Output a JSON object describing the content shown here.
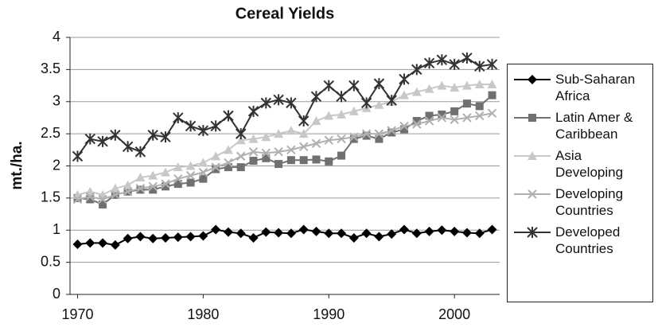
{
  "chart_data": {
    "type": "line",
    "title": "Cereal Yields",
    "y_label": "mt./ha.",
    "x": [
      1970,
      1971,
      1972,
      1973,
      1974,
      1975,
      1976,
      1977,
      1978,
      1979,
      1980,
      1981,
      1982,
      1983,
      1984,
      1985,
      1986,
      1987,
      1988,
      1989,
      1990,
      1991,
      1992,
      1993,
      1994,
      1995,
      1996,
      1997,
      1998,
      1999,
      2000,
      2001,
      2002,
      2003
    ],
    "xlim": [
      1969.4,
      2003.6
    ],
    "xticks": [
      1970,
      1980,
      1990,
      2000
    ],
    "ylim": [
      0,
      4
    ],
    "yticks": [
      0,
      0.5,
      1,
      1.5,
      2,
      2.5,
      3,
      3.5,
      4
    ],
    "grid": true,
    "legend": "right",
    "series": [
      {
        "name": "Sub-Saharan Africa",
        "color": "#000000",
        "marker": "diamond",
        "values": [
          0.78,
          0.8,
          0.8,
          0.77,
          0.87,
          0.9,
          0.87,
          0.88,
          0.89,
          0.9,
          0.91,
          1.01,
          0.97,
          0.95,
          0.88,
          0.97,
          0.96,
          0.95,
          1.01,
          0.98,
          0.95,
          0.95,
          0.88,
          0.95,
          0.9,
          0.94,
          1.01,
          0.95,
          0.98,
          1.0,
          0.98,
          0.96,
          0.95,
          1.01
        ]
      },
      {
        "name": "Latin Amer & Caribbean",
        "color": "#707070",
        "marker": "square",
        "values": [
          1.5,
          1.48,
          1.4,
          1.55,
          1.6,
          1.63,
          1.63,
          1.68,
          1.72,
          1.74,
          1.8,
          1.95,
          1.98,
          1.98,
          2.08,
          2.12,
          2.03,
          2.09,
          2.09,
          2.1,
          2.07,
          2.16,
          2.42,
          2.47,
          2.42,
          2.52,
          2.57,
          2.7,
          2.78,
          2.8,
          2.85,
          2.97,
          2.93,
          3.1
        ]
      },
      {
        "name": "Asia Developing",
        "color": "#c8c8c8",
        "marker": "triangle",
        "values": [
          1.55,
          1.6,
          1.55,
          1.65,
          1.7,
          1.82,
          1.85,
          1.9,
          1.98,
          2.0,
          2.05,
          2.15,
          2.25,
          2.4,
          2.42,
          2.45,
          2.5,
          2.55,
          2.5,
          2.7,
          2.78,
          2.8,
          2.85,
          2.9,
          2.95,
          3.0,
          3.1,
          3.15,
          3.2,
          3.25,
          3.22,
          3.25,
          3.27,
          3.27
        ]
      },
      {
        "name": "Developing Countries",
        "color": "#b0b0b0",
        "marker": "x",
        "values": [
          1.48,
          1.52,
          1.48,
          1.55,
          1.6,
          1.65,
          1.68,
          1.72,
          1.8,
          1.85,
          1.9,
          1.98,
          2.05,
          2.15,
          2.22,
          2.2,
          2.22,
          2.25,
          2.3,
          2.35,
          2.4,
          2.42,
          2.45,
          2.5,
          2.5,
          2.55,
          2.62,
          2.65,
          2.7,
          2.75,
          2.72,
          2.75,
          2.78,
          2.82
        ]
      },
      {
        "name": "Developed Countries",
        "color": "#333333",
        "marker": "star",
        "values": [
          2.15,
          2.42,
          2.38,
          2.48,
          2.3,
          2.22,
          2.48,
          2.45,
          2.75,
          2.62,
          2.55,
          2.62,
          2.78,
          2.5,
          2.85,
          2.98,
          3.03,
          2.98,
          2.7,
          3.08,
          3.25,
          3.08,
          3.25,
          2.98,
          3.28,
          3.02,
          3.35,
          3.5,
          3.6,
          3.65,
          3.58,
          3.68,
          3.55,
          3.58
        ]
      }
    ]
  }
}
